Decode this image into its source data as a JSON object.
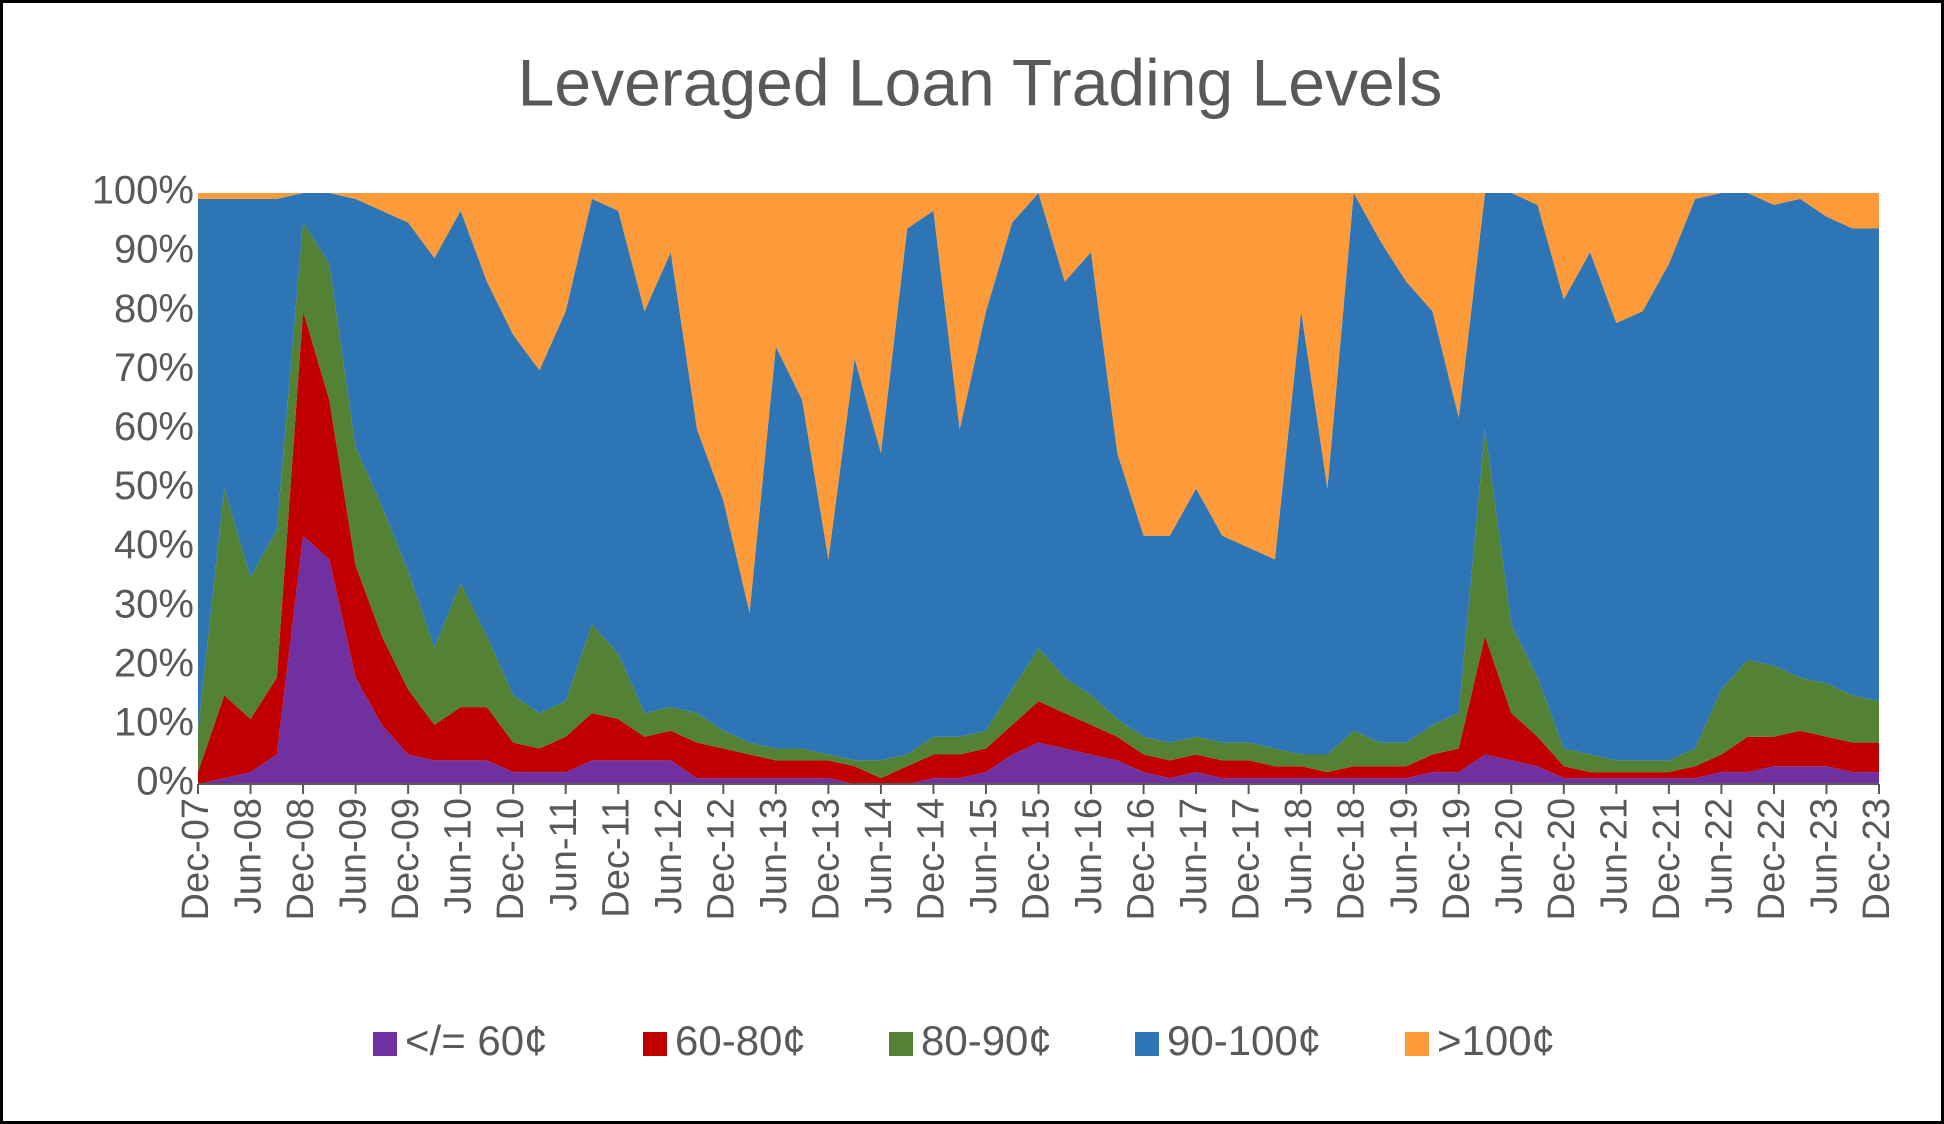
{
  "chart_data": {
    "type": "stacked_area",
    "title": "Leveraged Loan Trading Levels",
    "categories": [
      "Dec-07",
      null,
      "Jun-08",
      null,
      "Dec-08",
      null,
      "Jun-09",
      null,
      "Dec-09",
      null,
      "Jun-10",
      null,
      "Dec-10",
      null,
      "Jun-11",
      null,
      "Dec-11",
      null,
      "Jun-12",
      null,
      "Dec-12",
      null,
      "Jun-13",
      null,
      "Dec-13",
      null,
      "Jun-14",
      null,
      "Dec-14",
      null,
      "Jun-15",
      null,
      "Dec-15",
      null,
      "Jun-16",
      null,
      "Dec-16",
      null,
      "Jun-17",
      null,
      "Dec-17",
      null,
      "Jun-18",
      null,
      "Dec-18",
      null,
      "Jun-19",
      null,
      "Dec-19",
      null,
      "Jun-20",
      null,
      "Dec-20",
      null,
      "Jun-21",
      null,
      "Dec-21",
      null,
      "Jun-22",
      null,
      "Dec-22",
      null,
      "Jun-23",
      null,
      "Dec-23"
    ],
    "series": [
      {
        "name": "</= 60¢",
        "color": "#7030a0",
        "values": [
          0,
          1,
          2,
          5,
          42,
          38,
          18,
          10,
          5,
          4,
          4,
          4,
          2,
          2,
          2,
          4,
          4,
          4,
          4,
          1,
          1,
          1,
          1,
          1,
          1,
          0,
          0,
          0,
          1,
          1,
          2,
          5,
          7,
          6,
          5,
          4,
          2,
          1,
          2,
          1,
          1,
          1,
          1,
          1,
          1,
          1,
          1,
          2,
          2,
          5,
          4,
          3,
          1,
          1,
          1,
          1,
          1,
          1,
          2,
          2,
          3,
          3,
          3,
          2,
          2
        ]
      },
      {
        "name": "60-80¢",
        "color": "#c00000",
        "values": [
          2,
          14,
          9,
          13,
          38,
          27,
          19,
          15,
          11,
          6,
          9,
          9,
          5,
          4,
          6,
          8,
          7,
          4,
          5,
          6,
          5,
          4,
          3,
          3,
          3,
          3,
          1,
          3,
          4,
          4,
          4,
          5,
          7,
          6,
          5,
          4,
          3,
          3,
          3,
          3,
          3,
          2,
          2,
          1,
          2,
          2,
          2,
          3,
          4,
          20,
          8,
          5,
          2,
          1,
          1,
          1,
          1,
          2,
          3,
          6,
          5,
          6,
          5,
          5,
          5
        ]
      },
      {
        "name": "80-90¢",
        "color": "#548235",
        "values": [
          7,
          35,
          24,
          25,
          15,
          23,
          20,
          22,
          20,
          13,
          21,
          12,
          8,
          6,
          6,
          15,
          11,
          4,
          4,
          5,
          3,
          2,
          2,
          2,
          1,
          1,
          3,
          2,
          3,
          3,
          3,
          6,
          9,
          6,
          5,
          3,
          3,
          3,
          3,
          3,
          3,
          3,
          2,
          3,
          6,
          4,
          4,
          5,
          6,
          35,
          15,
          10,
          3,
          3,
          2,
          2,
          2,
          3,
          11,
          13,
          12,
          9,
          9,
          8,
          7
        ]
      },
      {
        "name": "90-100¢",
        "color": "#2e75b6",
        "values": [
          90,
          49,
          64,
          56,
          5,
          12,
          42,
          50,
          59,
          66,
          63,
          60,
          61,
          58,
          66,
          72,
          75,
          68,
          77,
          48,
          39,
          22,
          68,
          59,
          33,
          68,
          52,
          89,
          89,
          52,
          71,
          79,
          77,
          67,
          75,
          45,
          34,
          35,
          42,
          35,
          33,
          32,
          75,
          45,
          91,
          85,
          78,
          70,
          50,
          40,
          73,
          80,
          76,
          85,
          74,
          76,
          84,
          93,
          84,
          79,
          78,
          81,
          79,
          79,
          80
        ]
      },
      {
        "name": ">100¢",
        "color": "#fd9a3a",
        "values": [
          1,
          1,
          1,
          1,
          0,
          0,
          1,
          3,
          5,
          11,
          3,
          15,
          24,
          30,
          20,
          1,
          3,
          20,
          10,
          40,
          52,
          71,
          26,
          35,
          62,
          28,
          44,
          6,
          3,
          40,
          20,
          5,
          0,
          15,
          10,
          44,
          58,
          58,
          50,
          58,
          60,
          62,
          20,
          50,
          0,
          8,
          15,
          20,
          38,
          0,
          0,
          2,
          18,
          10,
          22,
          20,
          12,
          1,
          0,
          0,
          2,
          1,
          4,
          6,
          6
        ]
      }
    ],
    "ylim": [
      0,
      100
    ],
    "yticks": [
      {
        "value": 0,
        "label": "0%"
      },
      {
        "value": 10,
        "label": "10%"
      },
      {
        "value": 20,
        "label": "20%"
      },
      {
        "value": 30,
        "label": "30%"
      },
      {
        "value": 40,
        "label": "40%"
      },
      {
        "value": 50,
        "label": "50%"
      },
      {
        "value": 60,
        "label": "60%"
      },
      {
        "value": 70,
        "label": "70%"
      },
      {
        "value": 80,
        "label": "80%"
      },
      {
        "value": 90,
        "label": "90%"
      },
      {
        "value": 100,
        "label": "100%"
      }
    ],
    "grid": false,
    "legend": "bottom"
  }
}
